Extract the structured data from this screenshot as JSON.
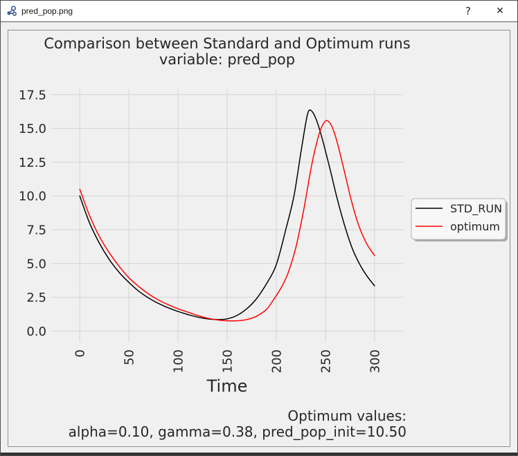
{
  "window": {
    "title": "pred_pop.png",
    "help_icon": "?",
    "close_icon": "✕"
  },
  "chart_data": {
    "type": "line",
    "title": "Comparison between Standard and Optimum runs",
    "subtitle": "variable: pred_pop",
    "xlabel": "Time",
    "ylabel": "",
    "x_ticks": [
      "0",
      "50",
      "100",
      "150",
      "200",
      "250",
      "300"
    ],
    "y_ticks": [
      "0.0",
      "2.5",
      "5.0",
      "7.5",
      "10.0",
      "12.5",
      "15.0",
      "17.5"
    ],
    "xlim": [
      -29,
      329
    ],
    "ylim": [
      -0.8,
      17.9
    ],
    "grid": true,
    "legend_position": "center right, outside axes",
    "x_tick_rotation": 90,
    "series": [
      {
        "name": "STD_RUN",
        "color": "#000000",
        "points": [
          [
            0,
            10.0
          ],
          [
            10,
            8.0
          ],
          [
            20,
            6.5
          ],
          [
            30,
            5.3
          ],
          [
            40,
            4.35
          ],
          [
            50,
            3.6
          ],
          [
            60,
            2.95
          ],
          [
            70,
            2.45
          ],
          [
            80,
            2.05
          ],
          [
            90,
            1.72
          ],
          [
            100,
            1.45
          ],
          [
            110,
            1.22
          ],
          [
            120,
            1.03
          ],
          [
            130,
            0.9
          ],
          [
            140,
            0.85
          ],
          [
            150,
            0.9
          ],
          [
            160,
            1.15
          ],
          [
            170,
            1.65
          ],
          [
            180,
            2.4
          ],
          [
            190,
            3.5
          ],
          [
            200,
            4.9
          ],
          [
            210,
            7.6
          ],
          [
            218,
            10.0
          ],
          [
            225,
            13.2
          ],
          [
            230,
            15.4
          ],
          [
            233,
            16.3
          ],
          [
            237,
            16.2
          ],
          [
            242,
            15.4
          ],
          [
            248,
            13.9
          ],
          [
            255,
            11.9
          ],
          [
            262,
            9.8
          ],
          [
            270,
            7.7
          ],
          [
            278,
            6.0
          ],
          [
            286,
            4.8
          ],
          [
            293,
            4.0
          ],
          [
            300,
            3.35
          ]
        ]
      },
      {
        "name": "optimum",
        "color": "#ff0000",
        "points": [
          [
            0,
            10.5
          ],
          [
            10,
            8.55
          ],
          [
            20,
            7.0
          ],
          [
            30,
            5.8
          ],
          [
            40,
            4.8
          ],
          [
            50,
            3.95
          ],
          [
            60,
            3.3
          ],
          [
            70,
            2.75
          ],
          [
            80,
            2.3
          ],
          [
            90,
            1.95
          ],
          [
            100,
            1.65
          ],
          [
            110,
            1.4
          ],
          [
            120,
            1.15
          ],
          [
            130,
            0.95
          ],
          [
            140,
            0.82
          ],
          [
            150,
            0.76
          ],
          [
            160,
            0.76
          ],
          [
            170,
            0.85
          ],
          [
            180,
            1.1
          ],
          [
            190,
            1.6
          ],
          [
            197,
            2.3
          ],
          [
            205,
            3.2
          ],
          [
            212,
            4.3
          ],
          [
            220,
            6.2
          ],
          [
            228,
            9.0
          ],
          [
            235,
            11.9
          ],
          [
            240,
            13.6
          ],
          [
            245,
            14.9
          ],
          [
            250,
            15.55
          ],
          [
            254,
            15.45
          ],
          [
            258,
            14.9
          ],
          [
            263,
            13.7
          ],
          [
            270,
            11.6
          ],
          [
            277,
            9.5
          ],
          [
            284,
            7.8
          ],
          [
            291,
            6.6
          ],
          [
            296,
            6.0
          ],
          [
            300,
            5.6
          ]
        ]
      }
    ],
    "annotation": {
      "line1": "Optimum values:",
      "line2": "alpha=0.10, gamma=0.38, pred_pop_init=10.50"
    }
  }
}
